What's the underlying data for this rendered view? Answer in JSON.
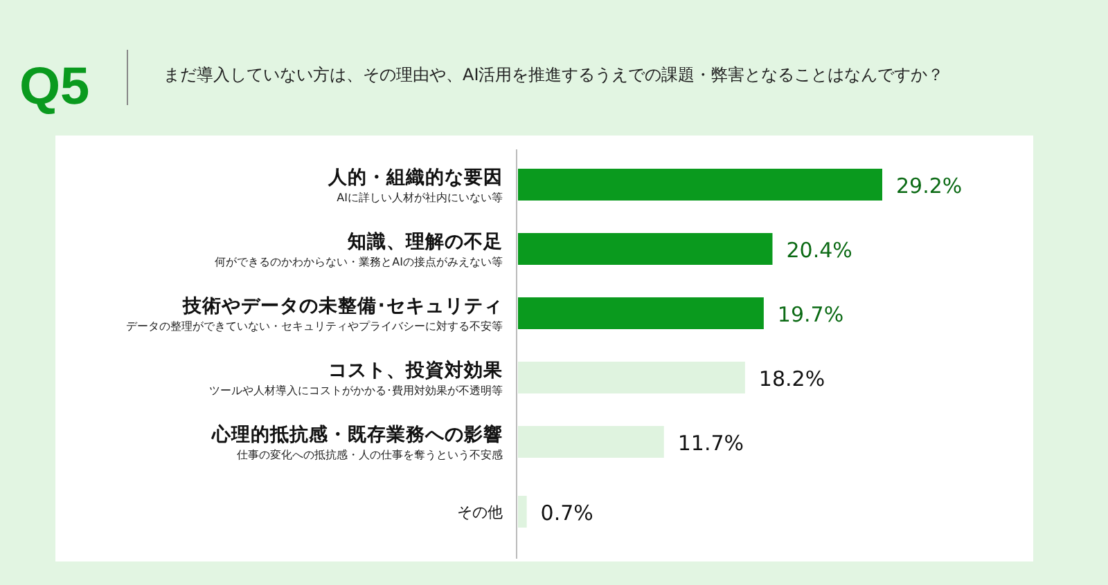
{
  "chart_data": {
    "type": "bar",
    "orientation": "horizontal",
    "title": "Q5",
    "subtitle": "まだ導入していない方は、その理由や、AI活用を推進するうえでの課題・弊害となることはなんですか？",
    "categories": [
      "人的・組織的な要因",
      "知識、理解の不足",
      "技術やデータの未整備･セキュリティ",
      "コスト、投資対効果",
      "心理的抵抗感・既存業務への影響",
      "その他"
    ],
    "annotations": [
      "AIに詳しい人材が社内にいない等",
      "何ができるのかわからない・業務とAIの接点がみえない等",
      "データの整理ができていない・セキュリティやプライバシーに対する不安等",
      "ツールや人材導入にコストがかかる･費用対効果が不透明等",
      "仕事の変化への抵抗感・人の仕事を奪うという不安感"
    ],
    "values": [
      29.2,
      20.4,
      19.7,
      18.2,
      11.7,
      0.7
    ],
    "value_labels": [
      "29.2%",
      "20.4%",
      "19.7%",
      "18.2%",
      "11.7%",
      "0.7%"
    ],
    "colors": [
      "#0a9a1e",
      "#0a9a1e",
      "#0a9a1e",
      "#dff3df",
      "#dff3df",
      "#dff3df"
    ]
  }
}
